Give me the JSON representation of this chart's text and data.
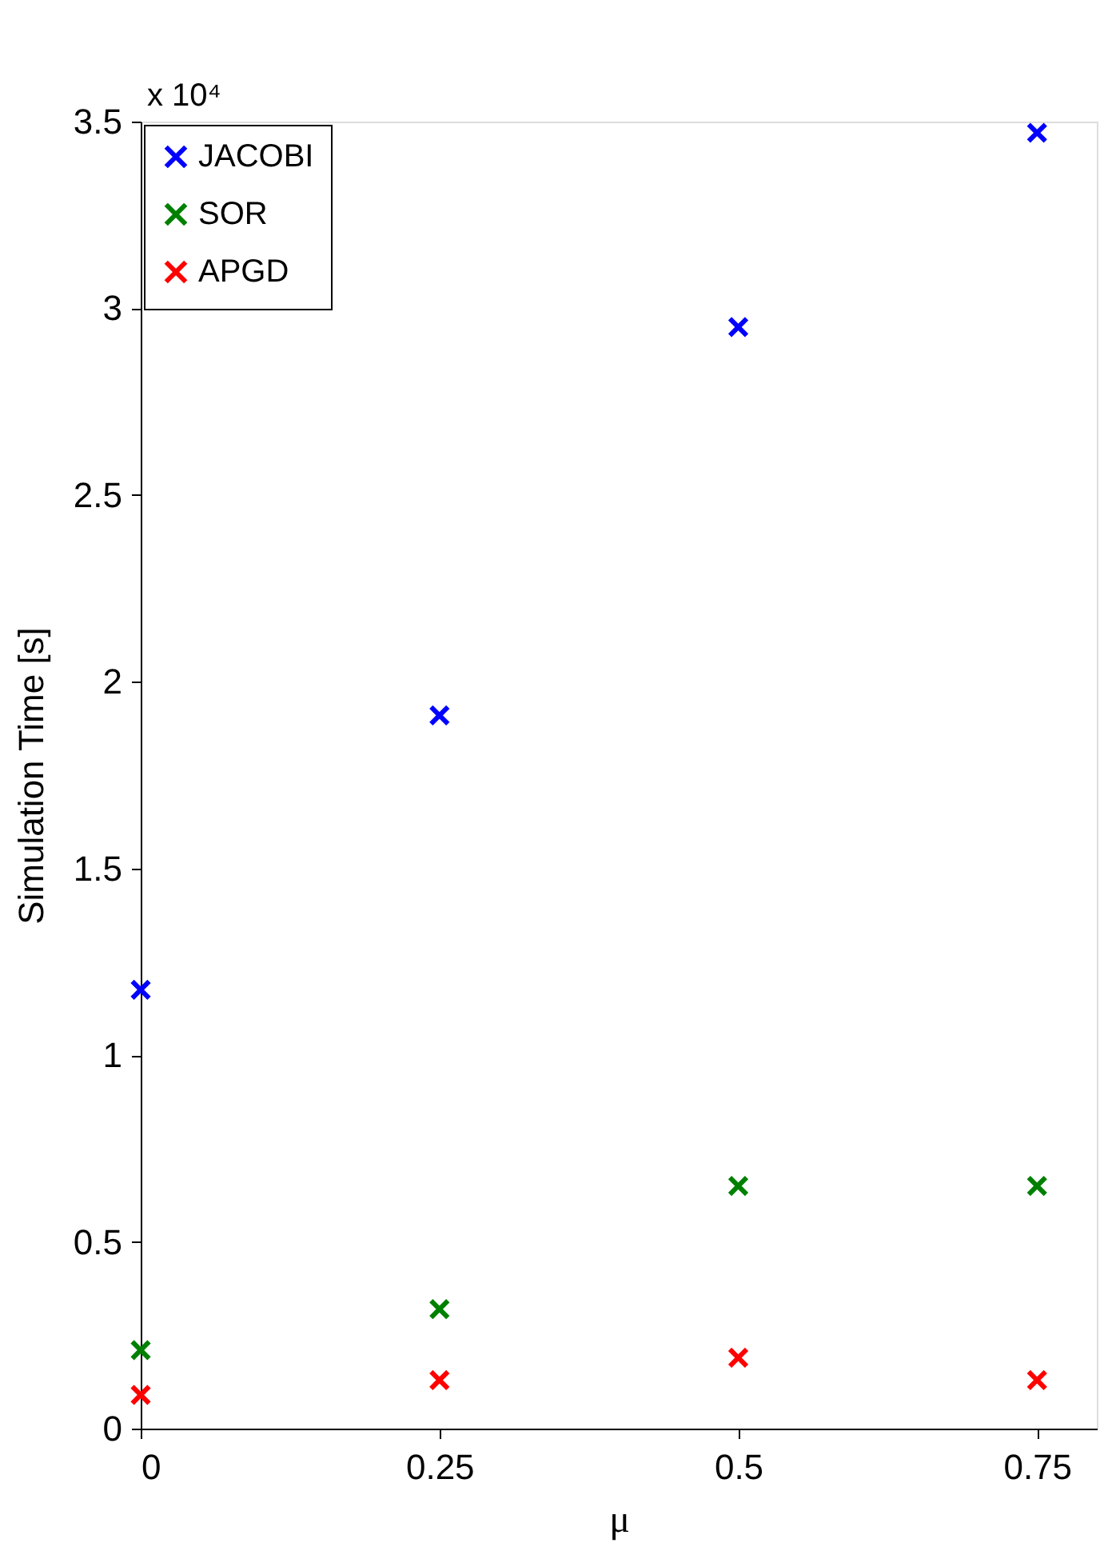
{
  "chart_data": {
    "type": "scatter",
    "xlabel": "μ",
    "ylabel": "Simulation Time [s]",
    "x": [
      0,
      0.25,
      0.5,
      0.75
    ],
    "series": [
      {
        "name": "JACOBI",
        "color": "#0000ff",
        "values": [
          1.175,
          1.91,
          2.95,
          3.47
        ]
      },
      {
        "name": "SOR",
        "color": "#008000",
        "values": [
          0.21,
          0.32,
          0.65,
          0.65
        ]
      },
      {
        "name": "APGD",
        "color": "#ff0000",
        "values": [
          0.09,
          0.13,
          0.19,
          0.13
        ]
      }
    ],
    "xlim": [
      0,
      0.8
    ],
    "xticks": [
      0,
      0.25,
      0.5,
      0.75
    ],
    "ylim": [
      0,
      3.5
    ],
    "yticks": [
      0,
      0.5,
      1,
      1.5,
      2,
      2.5,
      3,
      3.5
    ],
    "annotations": [
      "x 10⁴"
    ],
    "marker": "cross",
    "grid": false,
    "legend": "top left"
  }
}
